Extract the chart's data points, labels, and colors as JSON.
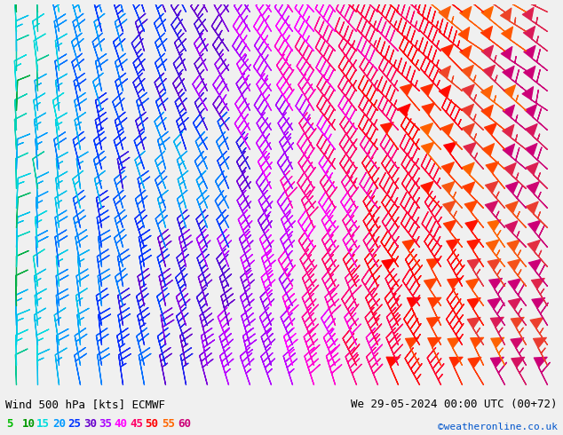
{
  "title_left": "Wind 500 hPa [kts] ECMWF",
  "title_right": "We 29-05-2024 00:00 UTC (00+72)",
  "credit": "©weatheronline.co.uk",
  "bg_color": "#f0f0f0",
  "legend_values": [
    5,
    10,
    15,
    20,
    25,
    30,
    35,
    40,
    45,
    50,
    55,
    60
  ],
  "legend_colors": [
    "#00bb00",
    "#009900",
    "#00dddd",
    "#0099ff",
    "#0033ff",
    "#6600cc",
    "#aa00ff",
    "#ff00ff",
    "#ff0066",
    "#ff0000",
    "#ff6600",
    "#cc0077"
  ],
  "figsize": [
    6.34,
    4.9
  ],
  "dpi": 100,
  "title_fontsize": 9,
  "legend_fontsize": 9,
  "credit_fontsize": 8,
  "nx": 26,
  "ny": 20,
  "barb_linewidth": 0.9
}
